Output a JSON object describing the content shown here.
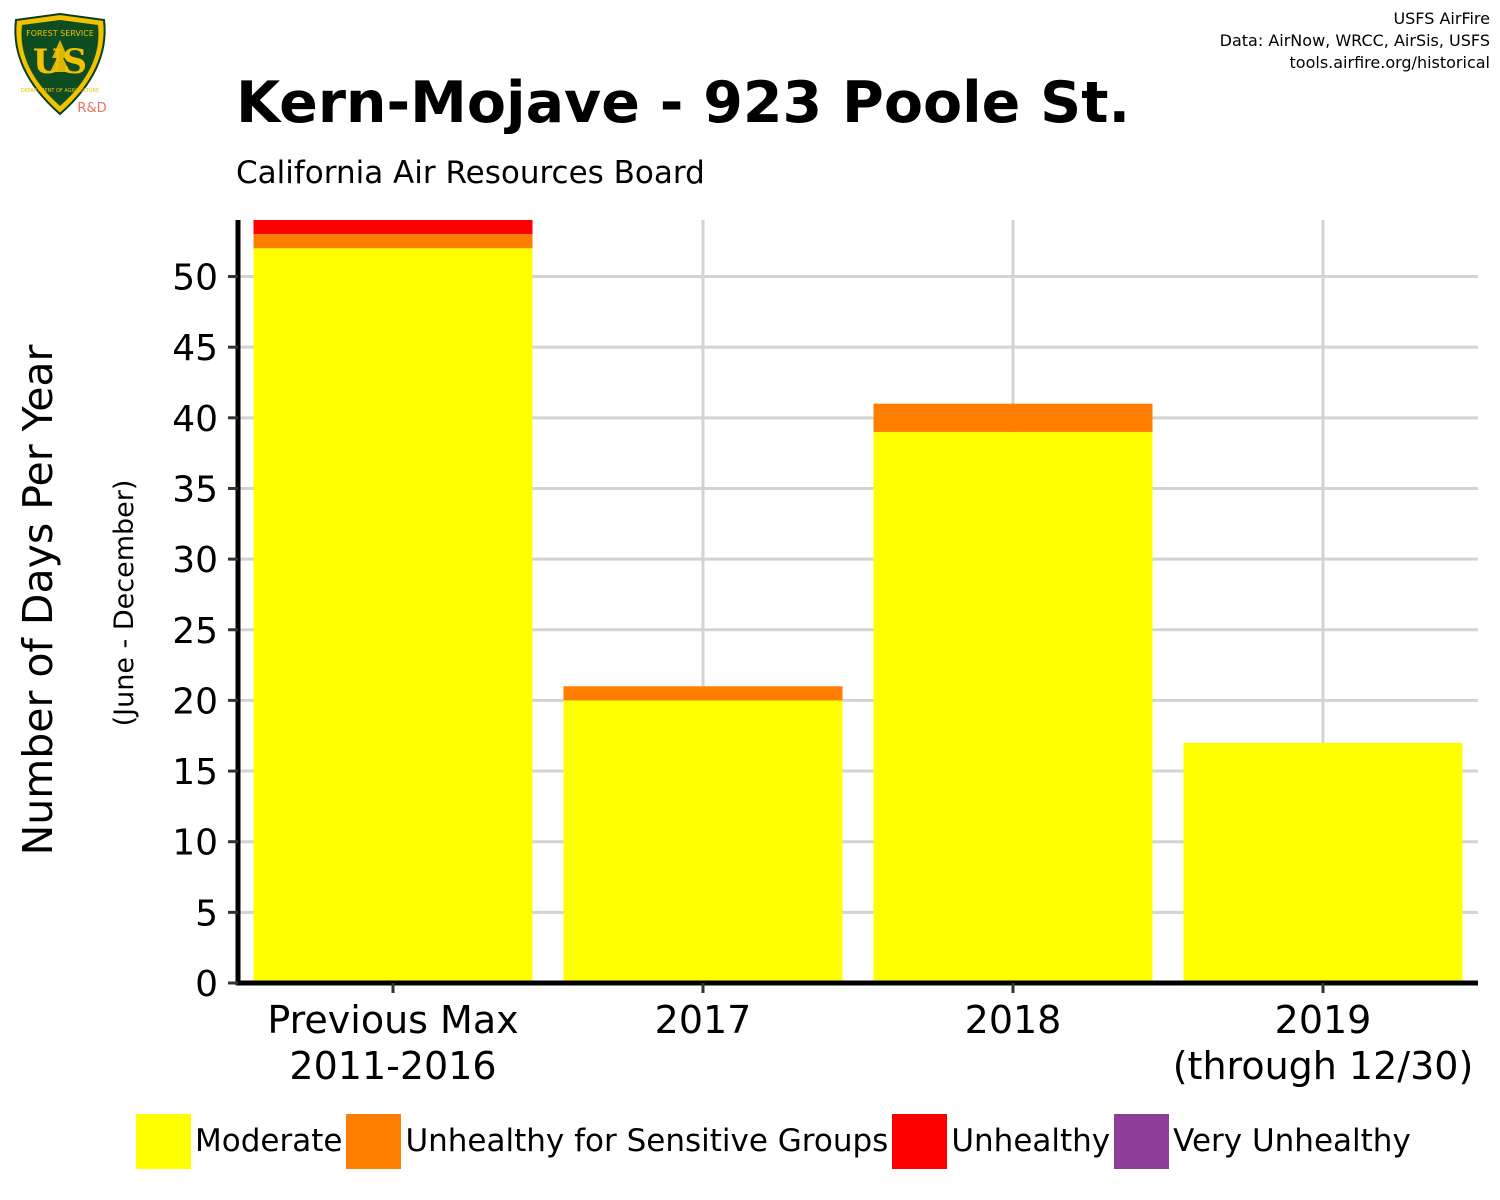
{
  "header": {
    "credits": [
      "USFS AirFire",
      "Data: AirNow, WRCC, AirSis, USFS",
      "tools.airfire.org/historical"
    ],
    "logo": {
      "icon": "usfs-shield-logo",
      "text_top": "FOREST SERVICE",
      "text_main": "US",
      "text_bottom": "DEPARTMENT OF AGRICULTURE",
      "badge": "R&D"
    }
  },
  "chart_data": {
    "type": "bar",
    "stacked": true,
    "title": "Kern-Mojave - 923 Poole St.",
    "subtitle": "California Air Resources Board",
    "ylabel": "Number of Days Per Year",
    "ylabel_sub": "(June - December)",
    "xlabel": "",
    "categories": [
      [
        "Previous Max",
        "2011-2016"
      ],
      [
        "2017"
      ],
      [
        "2018"
      ],
      [
        "2019",
        "(through 12/30)"
      ]
    ],
    "ylim": [
      0,
      54
    ],
    "yticks": [
      0,
      5,
      10,
      15,
      20,
      25,
      30,
      35,
      40,
      45,
      50
    ],
    "grid": true,
    "legend_position": "bottom",
    "series": [
      {
        "name": "Moderate",
        "color": "#FFFF00",
        "values": [
          52,
          20,
          39,
          17
        ]
      },
      {
        "name": "Unhealthy for Sensitive Groups",
        "color": "#FF7E00",
        "values": [
          1,
          1,
          2,
          0
        ]
      },
      {
        "name": "Unhealthy",
        "color": "#FF0000",
        "values": [
          1,
          0,
          0,
          0
        ]
      },
      {
        "name": "Very Unhealthy",
        "color": "#8F3F97",
        "values": [
          0,
          0,
          0,
          0
        ]
      }
    ]
  }
}
